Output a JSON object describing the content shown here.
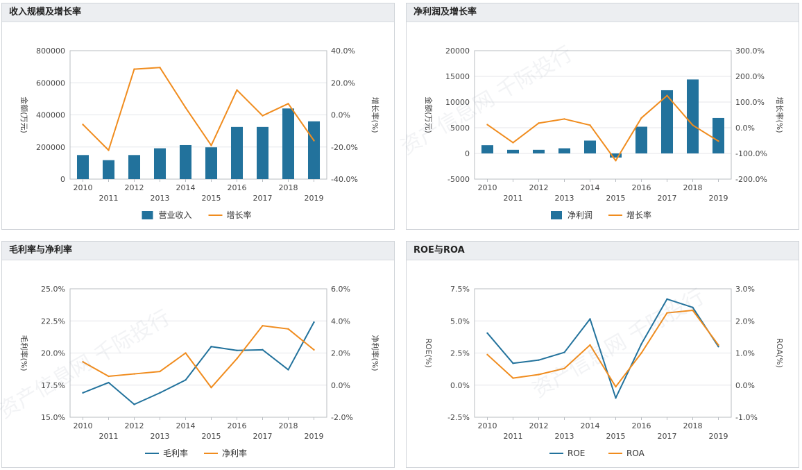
{
  "panels": [
    {
      "title": "收入规模及增长率",
      "chart_data": {
        "type": "bar+line",
        "categories": [
          "2010",
          "2011",
          "2012",
          "2013",
          "2014",
          "2015",
          "2016",
          "2017",
          "2018",
          "2019"
        ],
        "series": [
          {
            "name": "营业收入",
            "kind": "bar",
            "axis": "left",
            "color": "#22729c",
            "values": [
              150000,
              118000,
              150000,
              192000,
              212000,
              198000,
              325000,
              325000,
              440000,
              360000
            ]
          },
          {
            "name": "增长率",
            "kind": "line",
            "axis": "right",
            "color": "#f08c1e",
            "values": [
              -6.0,
              -22.0,
              28.5,
              29.5,
              4.5,
              -19.0,
              15.5,
              -0.5,
              7.0,
              -16.0
            ]
          }
        ],
        "ylabel": "金额(万元)",
        "y2label": "增长率(%)",
        "ylim": [
          0,
          800000
        ],
        "yticks": [
          0,
          200000,
          400000,
          600000,
          800000
        ],
        "yticklabels": [
          "0",
          "200000",
          "400000",
          "600000",
          "800000"
        ],
        "y2lim": [
          -40,
          40
        ],
        "y2ticks": [
          -40,
          -20,
          0,
          20,
          40
        ],
        "y2ticklabels": [
          "-40.0%",
          "-20.0%",
          "0.0%",
          "20.0%",
          "40.0%"
        ]
      }
    },
    {
      "title": "净利润及增长率",
      "chart_data": {
        "type": "bar+line",
        "categories": [
          "2010",
          "2011",
          "2012",
          "2013",
          "2014",
          "2015",
          "2016",
          "2017",
          "2018",
          "2019"
        ],
        "series": [
          {
            "name": "净利润",
            "kind": "bar",
            "axis": "left",
            "color": "#22729c",
            "values": [
              1600,
              700,
              700,
              1000,
              2500,
              -800,
              5200,
              12300,
              14400,
              6900
            ]
          },
          {
            "name": "增长率",
            "kind": "line",
            "axis": "right",
            "color": "#f08c1e",
            "values": [
              12,
              -58,
              18,
              34,
              10,
              -128,
              38,
              125,
              10,
              -52
            ]
          }
        ],
        "ylabel": "金额(万元)",
        "y2label": "增长率(%)",
        "ylim": [
          -5000,
          20000
        ],
        "yticks": [
          -5000,
          0,
          5000,
          10000,
          15000,
          20000
        ],
        "yticklabels": [
          "-5000",
          "0",
          "5000",
          "10000",
          "15000",
          "20000"
        ],
        "y2lim": [
          -200,
          300
        ],
        "y2ticks": [
          -200,
          -100,
          0,
          100,
          200,
          300
        ],
        "y2ticklabels": [
          "-200.0%",
          "-100.0%",
          "0.0%",
          "100.0%",
          "200.0%",
          "300.0%"
        ]
      }
    },
    {
      "title": "毛利率与净利率",
      "chart_data": {
        "type": "line",
        "categories": [
          "2010",
          "2011",
          "2012",
          "2013",
          "2014",
          "2015",
          "2016",
          "2017",
          "2018",
          "2019"
        ],
        "series": [
          {
            "name": "毛利率",
            "kind": "line",
            "axis": "left",
            "color": "#22729c",
            "values": [
              16.9,
              17.7,
              16.0,
              16.9,
              17.9,
              20.5,
              20.2,
              20.25,
              18.7,
              22.4
            ]
          },
          {
            "name": "净利率",
            "kind": "line",
            "axis": "right",
            "color": "#f08c1e",
            "values": [
              1.45,
              0.55,
              0.7,
              0.85,
              2.0,
              -0.15,
              1.65,
              3.7,
              3.5,
              2.2
            ]
          }
        ],
        "ylabel": "毛利率(%)",
        "y2label": "净利率(%)",
        "ylim": [
          15,
          25
        ],
        "yticks": [
          15,
          17.5,
          20,
          22.5,
          25
        ],
        "yticklabels": [
          "15.0%",
          "17.5%",
          "20.0%",
          "22.5%",
          "25.0%"
        ],
        "y2lim": [
          -2,
          6
        ],
        "y2ticks": [
          -2,
          0,
          2,
          4,
          6
        ],
        "y2ticklabels": [
          "-2.0%",
          "0.0%",
          "2.0%",
          "4.0%",
          "6.0%"
        ]
      }
    },
    {
      "title": "ROE与ROA",
      "chart_data": {
        "type": "line",
        "categories": [
          "2010",
          "2011",
          "2012",
          "2013",
          "2014",
          "2015",
          "2016",
          "2017",
          "2018",
          "2019"
        ],
        "series": [
          {
            "name": "ROE",
            "kind": "line",
            "axis": "left",
            "color": "#22729c",
            "values": [
              4.05,
              1.7,
              1.95,
              2.55,
              5.15,
              -1.0,
              3.2,
              6.7,
              6.05,
              3.0
            ]
          },
          {
            "name": "ROA",
            "kind": "line",
            "axis": "right",
            "color": "#f08c1e",
            "values": [
              0.95,
              0.22,
              0.33,
              0.52,
              1.25,
              -0.05,
              1.0,
              2.25,
              2.33,
              1.25
            ]
          }
        ],
        "ylabel": "ROE(%)",
        "y2label": "ROA(%)",
        "ylim": [
          -2.5,
          7.5
        ],
        "yticks": [
          -2.5,
          0,
          2.5,
          5,
          7.5
        ],
        "yticklabels": [
          "-2.5%",
          "0.0%",
          "2.5%",
          "5.0%",
          "7.5%"
        ],
        "y2lim": [
          -1,
          3
        ],
        "y2ticks": [
          -1,
          0,
          1,
          2,
          3
        ],
        "y2ticklabels": [
          "-1.0%",
          "0.0%",
          "1.0%",
          "2.0%",
          "3.0%"
        ]
      }
    }
  ],
  "watermark": "资产信息网 千际投行"
}
